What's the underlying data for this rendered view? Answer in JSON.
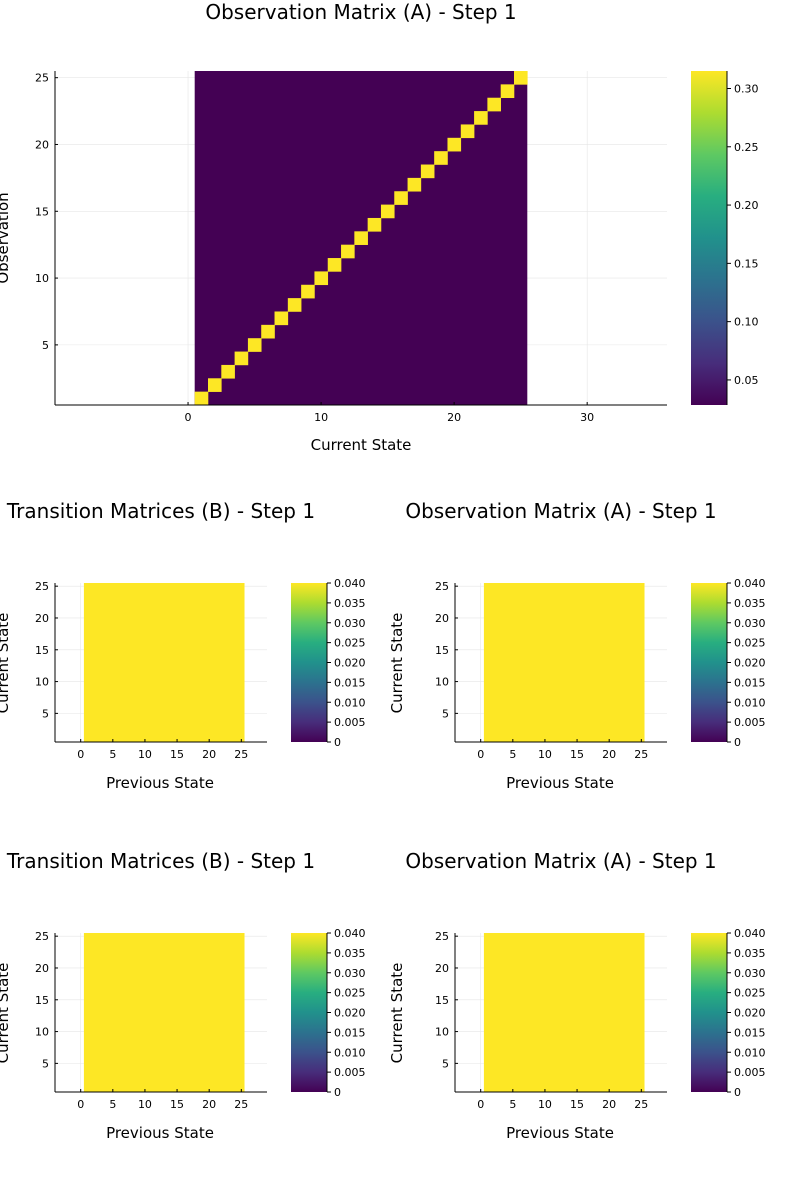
{
  "chart_data": [
    {
      "type": "heatmap",
      "title": "Observation Matrix (A) - Step 1",
      "xlabel": "Current State",
      "ylabel": "Observation",
      "xlim": [
        -10,
        36
      ],
      "ylim": [
        0.5,
        25.5
      ],
      "x_ticks": [
        0,
        10,
        20,
        30
      ],
      "y_ticks": [
        5,
        10,
        15,
        20,
        25
      ],
      "x_range": [
        1,
        25
      ],
      "y_range": [
        1,
        25
      ],
      "pattern": "identity",
      "diagonal_value": 0.315,
      "off_diagonal_value": 0.0285,
      "colorbar": {
        "min": 0.0285,
        "max": 0.315,
        "ticks": [
          0.05,
          0.1,
          0.15,
          0.2,
          0.25,
          0.3
        ],
        "tick_labels": [
          "0.05",
          "0.10",
          "0.15",
          "0.20",
          "0.25",
          "0.30"
        ]
      },
      "colormap": "viridis",
      "grid": true
    },
    {
      "type": "heatmap",
      "title": "Transition Matrices (B) - Step 1",
      "xlabel": "Previous State",
      "ylabel": "Current State",
      "xlim": [
        -4,
        29
      ],
      "ylim": [
        0.5,
        25.5
      ],
      "x_ticks": [
        0,
        5,
        10,
        15,
        20,
        25
      ],
      "y_ticks": [
        5,
        10,
        15,
        20,
        25
      ],
      "x_range": [
        1,
        25
      ],
      "y_range": [
        1,
        25
      ],
      "pattern": "uniform",
      "value": 0.04,
      "colorbar": {
        "min": 0,
        "max": 0.04,
        "ticks": [
          0,
          0.005,
          0.01,
          0.015,
          0.02,
          0.025,
          0.03,
          0.035,
          0.04
        ],
        "tick_labels": [
          "0",
          "0.005",
          "0.010",
          "0.015",
          "0.020",
          "0.025",
          "0.030",
          "0.035",
          "0.040"
        ]
      },
      "colormap": "viridis",
      "grid": true
    },
    {
      "type": "heatmap",
      "title": "Observation Matrix (A) - Step 1",
      "xlabel": "Previous State",
      "ylabel": "Current State",
      "xlim": [
        -4,
        29
      ],
      "ylim": [
        0.5,
        25.5
      ],
      "x_ticks": [
        0,
        5,
        10,
        15,
        20,
        25
      ],
      "y_ticks": [
        5,
        10,
        15,
        20,
        25
      ],
      "x_range": [
        1,
        25
      ],
      "y_range": [
        1,
        25
      ],
      "pattern": "uniform",
      "value": 0.04,
      "colorbar": {
        "min": 0,
        "max": 0.04,
        "ticks": [
          0,
          0.005,
          0.01,
          0.015,
          0.02,
          0.025,
          0.03,
          0.035,
          0.04
        ],
        "tick_labels": [
          "0",
          "0.005",
          "0.010",
          "0.015",
          "0.020",
          "0.025",
          "0.030",
          "0.035",
          "0.040"
        ]
      },
      "colormap": "viridis",
      "grid": true
    },
    {
      "type": "heatmap",
      "title": "Transition Matrices (B) - Step 1",
      "xlabel": "Previous State",
      "ylabel": "Current State",
      "xlim": [
        -4,
        29
      ],
      "ylim": [
        0.5,
        25.5
      ],
      "x_ticks": [
        0,
        5,
        10,
        15,
        20,
        25
      ],
      "y_ticks": [
        5,
        10,
        15,
        20,
        25
      ],
      "x_range": [
        1,
        25
      ],
      "y_range": [
        1,
        25
      ],
      "pattern": "uniform",
      "value": 0.04,
      "colorbar": {
        "min": 0,
        "max": 0.04,
        "ticks": [
          0,
          0.005,
          0.01,
          0.015,
          0.02,
          0.025,
          0.03,
          0.035,
          0.04
        ],
        "tick_labels": [
          "0",
          "0.005",
          "0.010",
          "0.015",
          "0.020",
          "0.025",
          "0.030",
          "0.035",
          "0.040"
        ]
      },
      "colormap": "viridis",
      "grid": true
    },
    {
      "type": "heatmap",
      "title": "Observation Matrix (A) - Step 1",
      "xlabel": "Previous State",
      "ylabel": "Current State",
      "xlim": [
        -4,
        29
      ],
      "ylim": [
        0.5,
        25.5
      ],
      "x_ticks": [
        0,
        5,
        10,
        15,
        20,
        25
      ],
      "y_ticks": [
        5,
        10,
        15,
        20,
        25
      ],
      "x_range": [
        1,
        25
      ],
      "y_range": [
        1,
        25
      ],
      "pattern": "uniform",
      "value": 0.04,
      "colorbar": {
        "min": 0,
        "max": 0.04,
        "ticks": [
          0,
          0.005,
          0.01,
          0.015,
          0.02,
          0.025,
          0.03,
          0.035,
          0.04
        ],
        "tick_labels": [
          "0",
          "0.005",
          "0.010",
          "0.015",
          "0.020",
          "0.025",
          "0.030",
          "0.035",
          "0.040"
        ]
      },
      "colormap": "viridis",
      "grid": true
    }
  ]
}
